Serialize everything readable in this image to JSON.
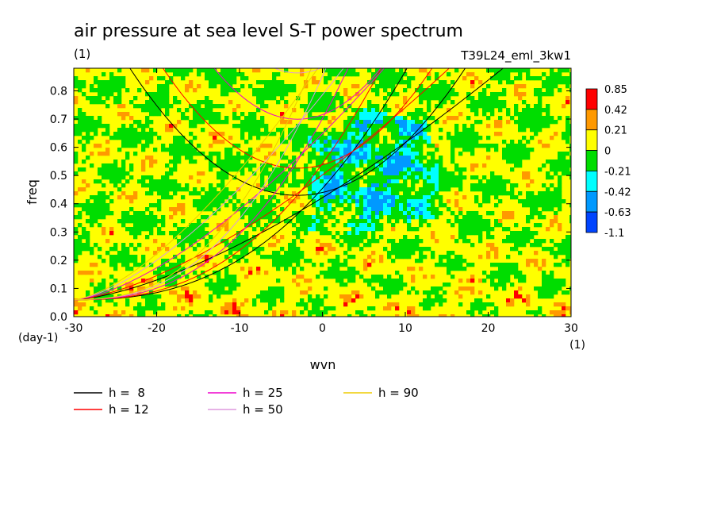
{
  "chart_data": {
    "type": "heatmap",
    "title": "air pressure at sea level S-T power spectrum",
    "subtitle_left": "(1)",
    "subtitle_right": "T39L24_eml_3kw1",
    "xlabel": "wvn",
    "ylabel": "freq",
    "x_unit": "(1)",
    "y_unit": "(day-1)",
    "xlim": [
      -30,
      30
    ],
    "ylim": [
      0,
      0.88
    ],
    "x_ticks": [
      -30,
      -20,
      -10,
      0,
      10,
      20,
      30
    ],
    "x_tick_labels": [
      "-30",
      "-20",
      "-10",
      "0",
      "10",
      "20",
      "30"
    ],
    "y_ticks": [
      0,
      0.1,
      0.2,
      0.3,
      0.4,
      0.5,
      0.6,
      0.7,
      0.8
    ],
    "y_tick_labels": [
      "0.0",
      "0.1",
      "0.2",
      "0.3",
      "0.4",
      "0.5",
      "0.6",
      "0.7",
      "0.8"
    ],
    "colorbar": {
      "labels": [
        "0.85",
        "0.42",
        "0.21",
        "0",
        "-0.21",
        "-0.42",
        "-0.63",
        "-1.1"
      ],
      "colors": [
        "#ff0000",
        "#ff9900",
        "#ffff00",
        "#00dd00",
        "#00ffff",
        "#0099ff",
        "#0044ff"
      ]
    },
    "field_note": "noisy power-spectrum field, mostly between -0.21 and 0.21, with negative (blue) patches near wvn 0 to 10, freq 0.3 to 0.7",
    "dispersion_curves": [
      {
        "h": 8,
        "label": "h =  8",
        "color": "#000000"
      },
      {
        "h": 12,
        "label": "h = 12",
        "color": "#ff0000"
      },
      {
        "h": 25,
        "label": "h = 25",
        "color": "#ee00cc"
      },
      {
        "h": 50,
        "label": "h = 50",
        "color": "#dd99dd"
      },
      {
        "h": 90,
        "label": "h = 90",
        "color": "#eecc00"
      }
    ]
  }
}
